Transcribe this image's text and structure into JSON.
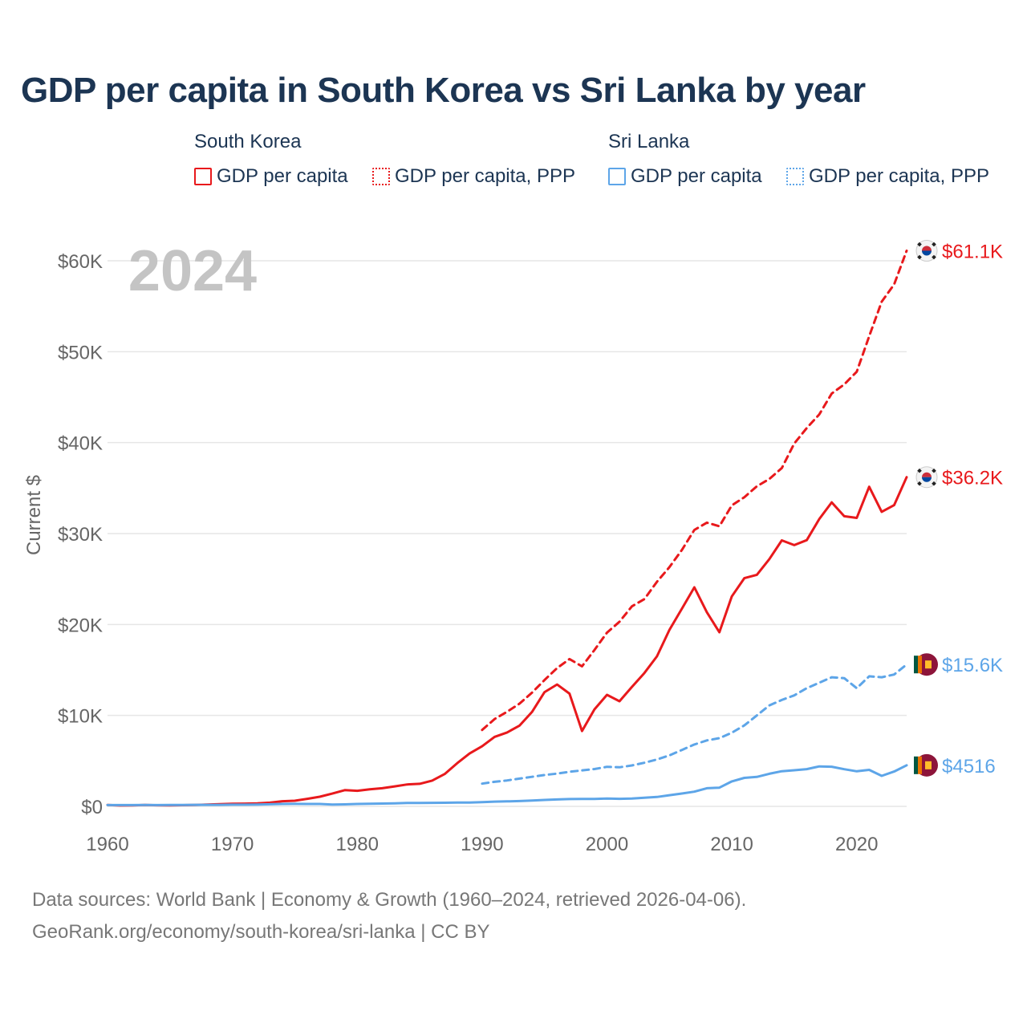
{
  "title": "GDP per capita in South Korea vs Sri Lanka by year",
  "legend": {
    "korea": {
      "name": "South Korea",
      "gdp": "GDP per capita",
      "ppp": "GDP per capita, PPP"
    },
    "srilanka": {
      "name": "Sri Lanka",
      "gdp": "GDP per capita",
      "ppp": "GDP per capita, PPP"
    }
  },
  "year_watermark": "2024",
  "footer": {
    "line1": "Data sources: World Bank | Economy & Growth (1960–2024, retrieved 2026-04-06).",
    "line2": "GeoRank.org/economy/south-korea/sri-lanka | CC BY"
  },
  "colors": {
    "korea": "#e8191c",
    "srilanka": "#5da5e8",
    "grid": "#e6e6e6",
    "axis_text": "#666666",
    "watermark": "#c4c4c4"
  },
  "chart_data": {
    "type": "line",
    "title": "GDP per capita in South Korea vs Sri Lanka by year",
    "xlabel": "",
    "ylabel": "Current $",
    "xlim": [
      1960,
      2024
    ],
    "ylim": [
      0,
      60000
    ],
    "x_ticks": [
      1960,
      1970,
      1980,
      1990,
      2000,
      2010,
      2020
    ],
    "y_ticks": [
      0,
      10000,
      20000,
      30000,
      40000,
      50000,
      60000
    ],
    "y_tick_labels": [
      "$0",
      "$10K",
      "$20K",
      "$30K",
      "$40K",
      "$50K",
      "$60K"
    ],
    "series": [
      {
        "name": "South Korea GDP per capita",
        "country": "korea",
        "style": "solid",
        "end_label": "$36.2K",
        "x": [
          1960,
          1961,
          1962,
          1963,
          1964,
          1965,
          1966,
          1967,
          1968,
          1969,
          1970,
          1971,
          1972,
          1973,
          1974,
          1975,
          1976,
          1977,
          1978,
          1979,
          1980,
          1981,
          1982,
          1983,
          1984,
          1985,
          1986,
          1987,
          1988,
          1989,
          1990,
          1991,
          1992,
          1993,
          1994,
          1995,
          1996,
          1997,
          1998,
          1999,
          2000,
          2001,
          2002,
          2003,
          2004,
          2005,
          2006,
          2007,
          2008,
          2009,
          2010,
          2011,
          2012,
          2013,
          2014,
          2015,
          2016,
          2017,
          2018,
          2019,
          2020,
          2021,
          2022,
          2023,
          2024
        ],
        "values": [
          158,
          94,
          106,
          146,
          124,
          109,
          133,
          161,
          198,
          244,
          279,
          302,
          324,
          407,
          563,
          617,
          832,
          1055,
          1405,
          1784,
          1715,
          1883,
          1993,
          2199,
          2413,
          2482,
          2835,
          3555,
          4749,
          5818,
          6610,
          7637,
          8127,
          8885,
          10385,
          12567,
          13403,
          12398,
          8282,
          10672,
          12263,
          11563,
          13138,
          14673,
          16496,
          19403,
          21743,
          24086,
          21345,
          19144,
          23087,
          25096,
          25467,
          27183,
          29250,
          28732,
          29274,
          31601,
          33436,
          31902,
          31721,
          35142,
          32395,
          33121,
          36200
        ]
      },
      {
        "name": "South Korea GDP per capita, PPP",
        "country": "korea",
        "style": "dashed",
        "end_label": "$61.1K",
        "x": [
          1990,
          1991,
          1992,
          1993,
          1994,
          1995,
          1996,
          1997,
          1998,
          1999,
          2000,
          2001,
          2002,
          2003,
          2004,
          2005,
          2006,
          2007,
          2008,
          2009,
          2010,
          2011,
          2012,
          2013,
          2014,
          2015,
          2016,
          2017,
          2018,
          2019,
          2020,
          2021,
          2022,
          2023,
          2024
        ],
        "values": [
          8400,
          9600,
          10400,
          11300,
          12500,
          13900,
          15200,
          16200,
          15400,
          17200,
          19100,
          20300,
          22000,
          22800,
          24700,
          26300,
          28200,
          30400,
          31200,
          30800,
          33100,
          34000,
          35200,
          36000,
          37200,
          39900,
          41600,
          43100,
          45400,
          46400,
          47800,
          51700,
          55500,
          57400,
          61100
        ]
      },
      {
        "name": "Sri Lanka GDP per capita",
        "country": "srilanka",
        "style": "solid",
        "end_label": "$4516",
        "x": [
          1960,
          1961,
          1962,
          1963,
          1964,
          1965,
          1966,
          1967,
          1968,
          1969,
          1970,
          1971,
          1972,
          1973,
          1974,
          1975,
          1976,
          1977,
          1978,
          1979,
          1980,
          1981,
          1982,
          1983,
          1984,
          1985,
          1986,
          1987,
          1988,
          1989,
          1990,
          1991,
          1992,
          1993,
          1994,
          1995,
          1996,
          1997,
          1998,
          1999,
          2000,
          2001,
          2002,
          2003,
          2004,
          2005,
          2006,
          2007,
          2008,
          2009,
          2010,
          2011,
          2012,
          2013,
          2014,
          2015,
          2016,
          2017,
          2018,
          2019,
          2020,
          2021,
          2022,
          2023,
          2024
        ],
        "values": [
          143,
          144,
          145,
          146,
          145,
          158,
          160,
          164,
          169,
          172,
          182,
          186,
          196,
          231,
          265,
          273,
          267,
          262,
          193,
          221,
          268,
          291,
          309,
          334,
          375,
          367,
          387,
          397,
          412,
          412,
          464,
          518,
          549,
          578,
          647,
          707,
          761,
          805,
          812,
          812,
          856,
          826,
          856,
          955,
          1034,
          1225,
          1412,
          1616,
          1994,
          2057,
          2740,
          3129,
          3239,
          3582,
          3862,
          3967,
          4091,
          4393,
          4361,
          4082,
          3852,
          4014,
          3354,
          3828,
          4516
        ]
      },
      {
        "name": "Sri Lanka GDP per capita, PPP",
        "country": "srilanka",
        "style": "dashed",
        "end_label": "$15.6K",
        "x": [
          1990,
          1991,
          1992,
          1993,
          1994,
          1995,
          1996,
          1997,
          1998,
          1999,
          2000,
          2001,
          2002,
          2003,
          2004,
          2005,
          2006,
          2007,
          2008,
          2009,
          2010,
          2011,
          2012,
          2013,
          2014,
          2015,
          2016,
          2017,
          2018,
          2019,
          2020,
          2021,
          2022,
          2023,
          2024
        ],
        "values": [
          2500,
          2700,
          2850,
          3050,
          3250,
          3450,
          3600,
          3800,
          3950,
          4100,
          4350,
          4300,
          4500,
          4800,
          5150,
          5600,
          6200,
          6800,
          7250,
          7500,
          8100,
          8900,
          10000,
          11100,
          11700,
          12200,
          13000,
          13600,
          14200,
          14100,
          13000,
          14300,
          14200,
          14500,
          15600
        ]
      }
    ]
  }
}
